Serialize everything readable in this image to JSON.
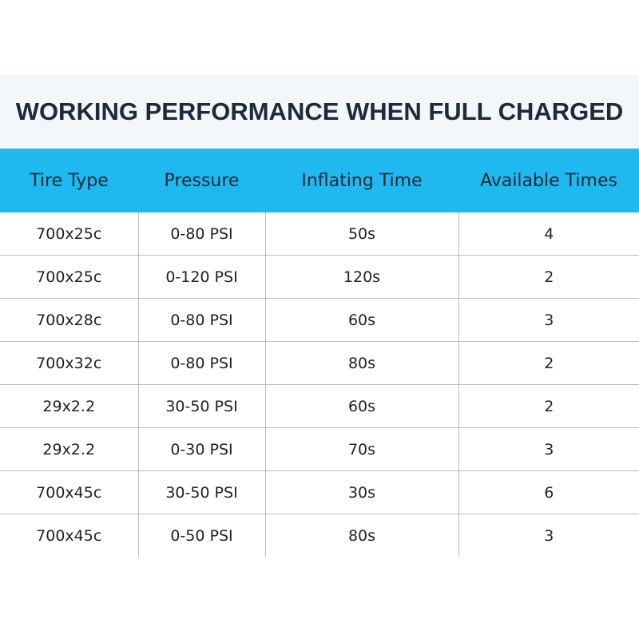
{
  "title": "WORKING PERFORMANCE WHEN FULL CHARGED",
  "table": {
    "header": [
      "Tire Type",
      "Pressure",
      "Inflating Time",
      "Available Times"
    ],
    "rows": [
      [
        "700x25c",
        "0-80 PSI",
        "50s",
        "4"
      ],
      [
        "700x25c",
        "0-120 PSI",
        "120s",
        "2"
      ],
      [
        "700x28c",
        "0-80 PSI",
        "60s",
        "3"
      ],
      [
        "700x32c",
        "0-80 PSI",
        "80s",
        "2"
      ],
      [
        "29x2.2",
        "30-50 PSI",
        "60s",
        "2"
      ],
      [
        "29x2.2",
        "0-30 PSI",
        "70s",
        "3"
      ],
      [
        "700x45c",
        "30-50 PSI",
        "30s",
        "6"
      ],
      [
        "700x45c",
        "0-50 PSI",
        "80s",
        "3"
      ]
    ]
  }
}
